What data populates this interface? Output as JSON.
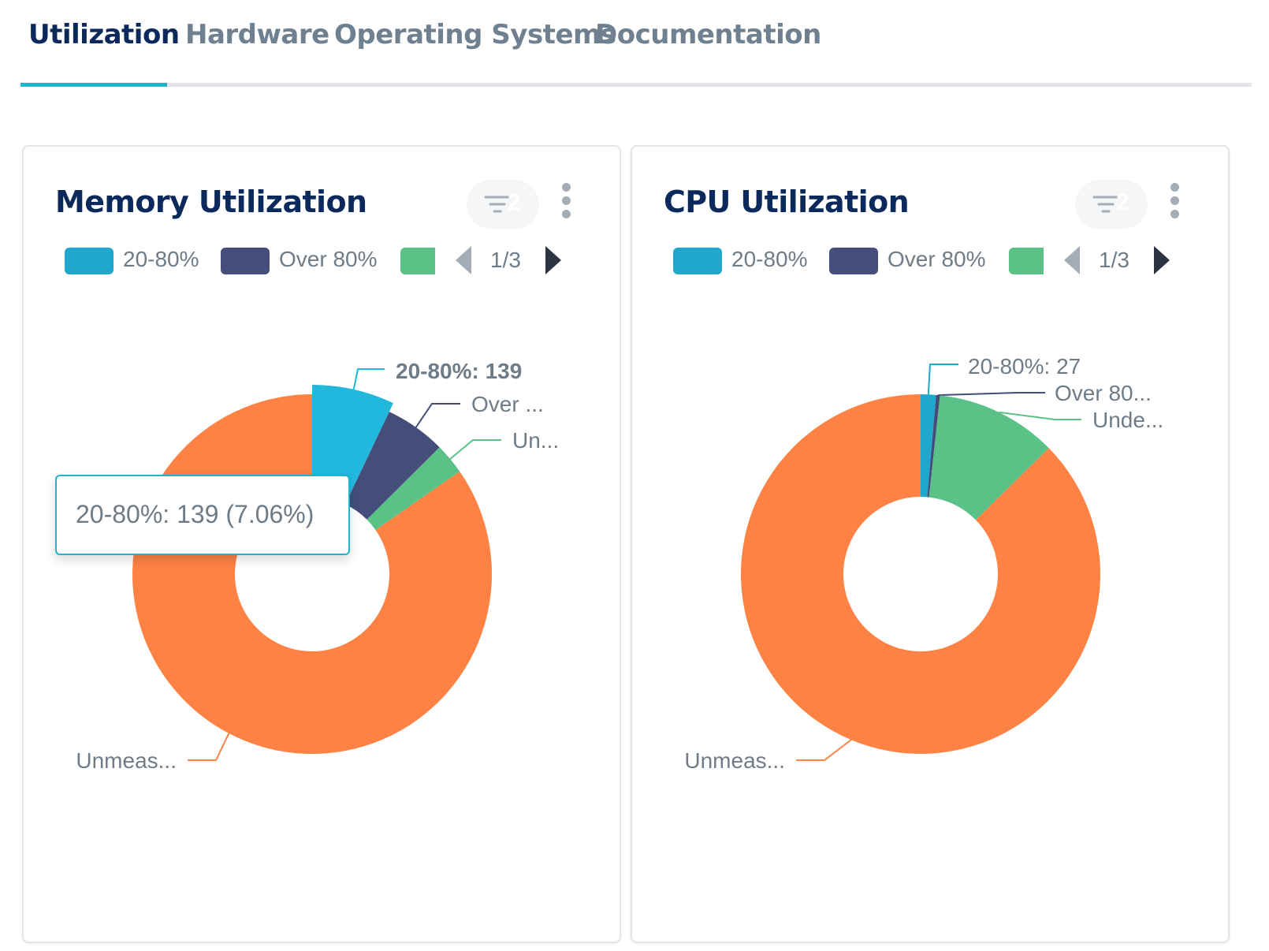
{
  "tabs": [
    {
      "label": "Utilization",
      "active": true
    },
    {
      "label": "Hardware",
      "active": false
    },
    {
      "label": "Operating Systems",
      "active": false
    },
    {
      "label": "Documentation",
      "active": false
    }
  ],
  "colors": {
    "band_20_80": "#1fa8cc",
    "band_over_80": "#454e7b",
    "band_under": "#5bc287",
    "band_unmeasured": "#fe8243",
    "highlight_20_80": "#22b8de",
    "accent": "#1fb4cc",
    "title": "#0b2a5b"
  },
  "cards": [
    {
      "title": "Memory Utilization",
      "filter_count": "2",
      "legend": {
        "items": [
          {
            "label": "20-80%",
            "color": "#1fa8cc"
          },
          {
            "label": "Over 80%",
            "color": "#454e7b"
          },
          {
            "color": "#5bc287"
          }
        ],
        "page": "1/3"
      },
      "tooltip": "20-80%: 139 (7.06%)",
      "chart_data": {
        "type": "pie",
        "donut": true,
        "slices": [
          {
            "label": "20-80%",
            "value": 139,
            "color": "#22b8de",
            "callout": "20-80%: 139",
            "bold": true,
            "highlighted": true
          },
          {
            "label": "Over 80%",
            "value": 108,
            "color": "#454e7b",
            "callout": "Over ..."
          },
          {
            "label": "Under 20%",
            "value": 55,
            "color": "#5bc287",
            "callout": "Un..."
          },
          {
            "label": "Unmeasured",
            "value": 1667,
            "color": "#fe8243",
            "callout": "Unmeas..."
          }
        ]
      }
    },
    {
      "title": "CPU Utilization",
      "filter_count": "2",
      "legend": {
        "items": [
          {
            "label": "20-80%",
            "color": "#1fa8cc"
          },
          {
            "label": "Over 80%",
            "color": "#454e7b"
          },
          {
            "color": "#5bc287"
          }
        ],
        "page": "1/3"
      },
      "chart_data": {
        "type": "pie",
        "donut": true,
        "slices": [
          {
            "label": "20-80%",
            "value": 27,
            "color": "#1fa8cc",
            "callout": "20-80%: 27"
          },
          {
            "label": "Over 80%",
            "value": 7,
            "color": "#454e7b",
            "callout": "Over 80..."
          },
          {
            "label": "Under 20%",
            "value": 215,
            "color": "#5bc287",
            "callout": "Unde..."
          },
          {
            "label": "Unmeasured",
            "value": 1720,
            "color": "#fe8243",
            "callout": "Unmeas..."
          }
        ]
      }
    }
  ]
}
